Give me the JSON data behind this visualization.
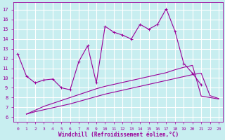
{
  "xlabel": "Windchill (Refroidissement éolien,°C)",
  "bg_color": "#c8eef0",
  "grid_color": "#ffffff",
  "line_color": "#990099",
  "x_ticks": [
    0,
    1,
    2,
    3,
    4,
    5,
    6,
    7,
    8,
    9,
    10,
    11,
    12,
    13,
    14,
    15,
    16,
    17,
    18,
    19,
    20,
    21,
    22,
    23
  ],
  "y_ticks": [
    6,
    7,
    8,
    9,
    10,
    11,
    12,
    13,
    14,
    15,
    16,
    17
  ],
  "ylim": [
    5.5,
    17.8
  ],
  "xlim": [
    -0.5,
    23.5
  ],
  "series1_x": [
    0,
    1,
    2,
    3,
    4,
    5,
    6,
    7,
    8,
    9,
    10,
    11,
    12,
    13,
    14,
    15,
    16,
    17,
    18,
    19,
    20,
    21
  ],
  "series1_y": [
    12.5,
    10.2,
    9.5,
    9.8,
    9.9,
    9.0,
    8.8,
    11.7,
    13.3,
    9.5,
    15.3,
    14.7,
    14.4,
    14.0,
    15.5,
    15.0,
    15.5,
    17.1,
    14.8,
    11.5,
    10.5,
    9.3
  ],
  "series2_x": [
    1,
    2,
    3,
    4,
    5,
    6,
    7,
    8,
    9,
    10,
    11,
    12,
    13,
    14,
    15,
    16,
    17,
    18,
    19,
    20,
    21,
    22,
    23
  ],
  "series2_y": [
    6.3,
    6.55,
    6.75,
    6.95,
    7.15,
    7.35,
    7.6,
    7.85,
    8.1,
    8.35,
    8.55,
    8.75,
    8.95,
    9.15,
    9.35,
    9.55,
    9.75,
    9.95,
    10.15,
    10.35,
    10.5,
    8.2,
    7.9
  ],
  "series3_x": [
    1,
    2,
    3,
    4,
    5,
    6,
    7,
    8,
    9,
    10,
    11,
    12,
    13,
    14,
    15,
    16,
    17,
    18,
    19,
    20,
    21,
    22,
    23
  ],
  "series3_y": [
    6.3,
    6.7,
    7.1,
    7.4,
    7.7,
    8.0,
    8.3,
    8.6,
    8.9,
    9.15,
    9.35,
    9.55,
    9.75,
    9.95,
    10.15,
    10.35,
    10.55,
    10.85,
    11.1,
    11.3,
    8.15,
    8.0,
    7.85
  ]
}
